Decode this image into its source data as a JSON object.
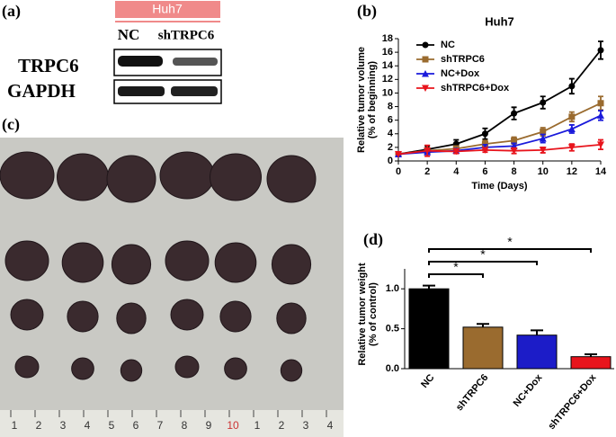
{
  "panel_labels": [
    "(a)",
    "(b)",
    "(c)",
    "(d)"
  ],
  "blot": {
    "cell_line": "Huh7",
    "lanes": [
      "NC",
      "shTRPC6"
    ],
    "proteins": [
      "TRPC6",
      "GAPDH"
    ]
  },
  "photo": {
    "ruler_labels": [
      "1",
      "2",
      "3",
      "4",
      "5",
      "6",
      "7",
      "8",
      "9",
      "10",
      "1",
      "2",
      "3",
      "4"
    ]
  },
  "chart_data": [
    {
      "type": "line",
      "title": "Huh7",
      "x_label": "Time (Days)",
      "y_label": [
        "Relative tumor volume",
        "(% of beginning)"
      ],
      "x": [
        0,
        2,
        4,
        6,
        8,
        10,
        12,
        14
      ],
      "xlim": [
        0,
        14
      ],
      "xticks": [
        0,
        2,
        4,
        6,
        8,
        10,
        12,
        14
      ],
      "ylim": [
        0,
        18
      ],
      "yticks": [
        0,
        2,
        4,
        6,
        8,
        10,
        12,
        14,
        16,
        18
      ],
      "legend": "upper left",
      "series": [
        {
          "name": "NC",
          "color": "#000000",
          "marker": "circle",
          "values": [
            1,
            1.7,
            2.5,
            4,
            7,
            8.6,
            11,
            16.3
          ],
          "errors": [
            0,
            0.5,
            0.6,
            0.8,
            0.9,
            0.9,
            1.1,
            1.3
          ]
        },
        {
          "name": "shTRPC6",
          "color": "#9a6b2f",
          "marker": "square",
          "values": [
            1,
            1.5,
            1.8,
            2.5,
            3,
            4.3,
            6.5,
            8.5
          ],
          "errors": [
            0,
            0.4,
            0.4,
            0.5,
            0.5,
            0.6,
            0.7,
            1
          ]
        },
        {
          "name": "NC+Dox",
          "color": "#1a1adb",
          "marker": "triangle-up",
          "values": [
            1,
            1.3,
            1.5,
            2,
            2.2,
            3.3,
            4.7,
            6.7
          ],
          "errors": [
            0,
            0.3,
            0.3,
            0.4,
            0.4,
            0.6,
            0.6,
            0.7
          ]
        },
        {
          "name": "shTRPC6+Dox",
          "color": "#e8141c",
          "marker": "triangle-down",
          "values": [
            1,
            1.5,
            1.4,
            1.6,
            1.5,
            1.6,
            2,
            2.4
          ],
          "errors": [
            0,
            0.8,
            0.3,
            0.3,
            0.4,
            0.4,
            0.5,
            0.7
          ]
        }
      ]
    },
    {
      "type": "bar",
      "y_label": [
        "Relative tumor weight",
        "(% of control)"
      ],
      "categories": [
        "NC",
        "shTRPC6",
        "NC+Dox",
        "shTRPC6+Dox"
      ],
      "values": [
        1.0,
        0.52,
        0.42,
        0.15
      ],
      "errors": [
        0.04,
        0.04,
        0.06,
        0.03
      ],
      "colors": [
        "#000000",
        "#9a6b2f",
        "#1c1cc8",
        "#e8141c"
      ],
      "ylim": [
        0,
        1.25
      ],
      "yticks": [
        {
          "value": 0,
          "label": "0.0"
        },
        {
          "value": 0.5,
          "label": "0.5"
        },
        {
          "value": 1,
          "label": "1.0"
        }
      ],
      "significance": [
        {
          "between": [
            0,
            1
          ],
          "label": "*"
        },
        {
          "between": [
            0,
            2
          ],
          "label": "*"
        },
        {
          "between": [
            0,
            3
          ],
          "label": "*"
        }
      ]
    }
  ]
}
